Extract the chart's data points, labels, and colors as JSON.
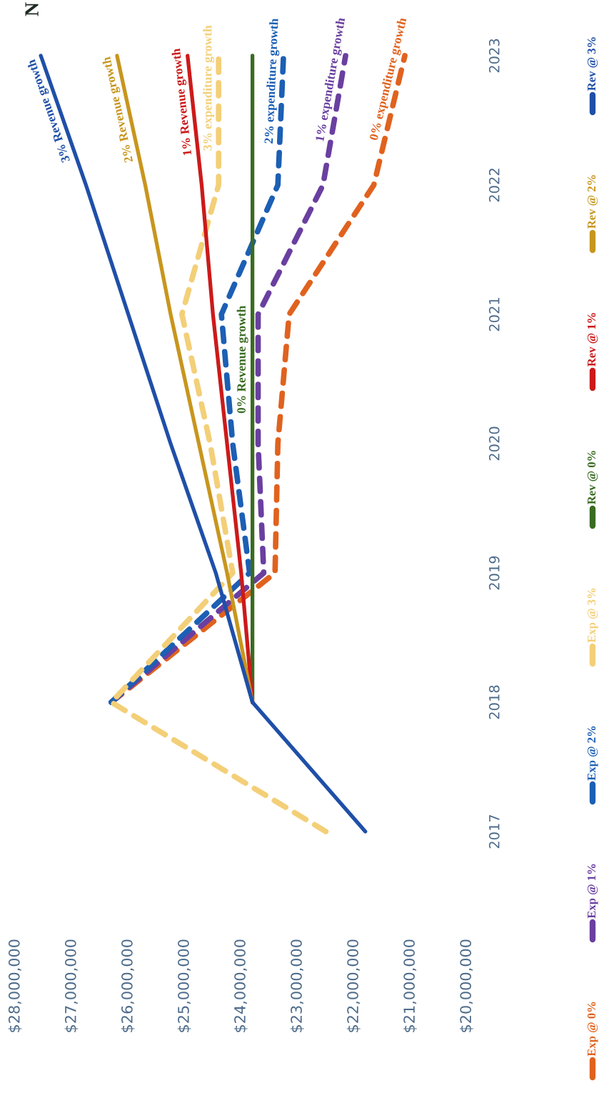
{
  "chart_data": {
    "type": "line",
    "title": "N",
    "xlim": [
      28000000,
      20000000
    ],
    "xticks": [
      {
        "value": 28000000,
        "label": "$28,000,000"
      },
      {
        "value": 27000000,
        "label": "$27,000,000"
      },
      {
        "value": 26000000,
        "label": "$26,000,000"
      },
      {
        "value": 25000000,
        "label": "$25,000,000"
      },
      {
        "value": 24000000,
        "label": "$24,000,000"
      },
      {
        "value": 23000000,
        "label": "$23,000,000"
      },
      {
        "value": 22000000,
        "label": "$22,000,000"
      },
      {
        "value": 21000000,
        "label": "$21,000,000"
      },
      {
        "value": 20000000,
        "label": "$20,000,000"
      }
    ],
    "ylim": [
      2017,
      2023
    ],
    "yticks": [
      2017,
      2018,
      2019,
      2020,
      2021,
      2022,
      2023
    ],
    "legend": "right",
    "series": [
      {
        "name": "Exp @ 0%",
        "color": "#e0621e",
        "line_style": "dashed",
        "x": [
          null,
          26300000,
          23400000,
          23350000,
          23150000,
          21650000,
          21100000
        ],
        "values": [
          null,
          2018,
          2019,
          2020,
          2021,
          2022,
          2023
        ]
      },
      {
        "name": "Exp @ 1%",
        "color": "#6a3fa0",
        "line_style": "dashed",
        "x": [
          null,
          26300000,
          23600000,
          23700000,
          23700000,
          22550000,
          22150000
        ],
        "values": [
          null,
          2018,
          2019,
          2020,
          2021,
          2022,
          2023
        ]
      },
      {
        "name": "Exp @ 2%",
        "color": "#1c5fb4",
        "line_style": "dashed",
        "x": [
          null,
          26300000,
          23850000,
          24150000,
          24350000,
          23350000,
          23250000
        ],
        "values": [
          null,
          2018,
          2019,
          2020,
          2021,
          2022,
          2023
        ]
      },
      {
        "name": "Exp @ 3%",
        "color": "#f3cf78",
        "line_style": "dashed",
        "x": [
          22500000,
          26300000,
          24150000,
          24550000,
          25050000,
          24400000,
          24400000
        ],
        "values": [
          2017,
          2018,
          2019,
          2020,
          2021,
          2022,
          2023
        ]
      },
      {
        "name": "Rev @ 0%",
        "color": "#3a6b22",
        "line_style": "solid",
        "x": [
          null,
          23800000,
          23800000,
          23800000,
          23800000,
          23800000,
          23800000
        ],
        "values": [
          null,
          2018,
          2019,
          2020,
          2021,
          2022,
          2023
        ]
      },
      {
        "name": "Rev @ 1%",
        "color": "#cc1a1a",
        "line_style": "solid",
        "x": [
          null,
          23800000,
          24000000,
          24250000,
          24500000,
          24700000,
          24950000
        ],
        "values": [
          null,
          2018,
          2019,
          2020,
          2021,
          2022,
          2023
        ]
      },
      {
        "name": "Rev @ 2%",
        "color": "#c8961e",
        "line_style": "solid",
        "x": [
          null,
          23800000,
          24250000,
          24750000,
          25250000,
          25700000,
          26200000
        ],
        "values": [
          null,
          2018,
          2019,
          2020,
          2021,
          2022,
          2023
        ]
      },
      {
        "name": "Rev @ 3%",
        "color": "#1f4fa8",
        "line_style": "solid",
        "x": [
          21800000,
          23800000,
          24450000,
          25250000,
          26000000,
          26750000,
          27550000
        ],
        "values": [
          2017,
          2018,
          2019,
          2020,
          2021,
          2022,
          2023
        ]
      }
    ],
    "annotations": [
      {
        "text": "3% Revenue growth",
        "x": 27230000,
        "y": 2022.6
      },
      {
        "text": "2% Revenue growth",
        "x": 26000000,
        "y": 2022.6
      },
      {
        "text": "1% Revenue growth",
        "x": 24860000,
        "y": 2022.65
      },
      {
        "text": "3% expenditure growth",
        "x": 24400000,
        "y": 2022.75
      },
      {
        "text": "2% expenditure growth",
        "x": 23270000,
        "y": 2022.8
      },
      {
        "text": "1% expenditure growth",
        "x": 22230000,
        "y": 2022.8
      },
      {
        "text": "0% expenditure growth",
        "x": 21210000,
        "y": 2022.8
      },
      {
        "text": "0% Revenue growth",
        "x": 23800000,
        "y": 2020.65
      }
    ]
  }
}
